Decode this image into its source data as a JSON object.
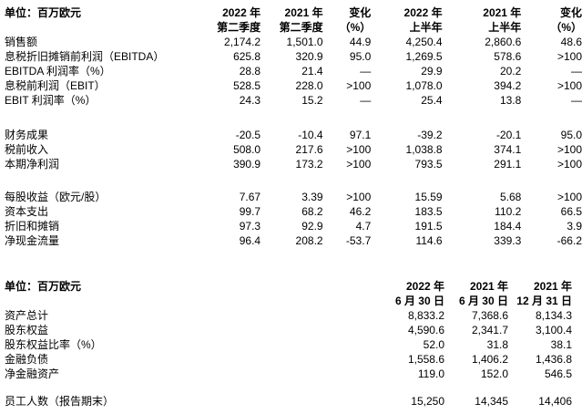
{
  "quarterly_table": {
    "unit_label": "单位：百万欧元",
    "columns": [
      {
        "line1": "2022 年",
        "line2": "第二季度"
      },
      {
        "line1": "2021 年",
        "line2": "第二季度"
      },
      {
        "line1": "变化",
        "line2": "（%）"
      },
      {
        "line1": "2022 年",
        "line2": "上半年"
      },
      {
        "line1": "2021 年",
        "line2": "上半年"
      },
      {
        "line1": "变化",
        "line2": "（%）"
      }
    ],
    "rows": [
      {
        "label": "销售额",
        "values": [
          "2,174.2",
          "1,501.0",
          "44.9",
          "4,250.4",
          "2,860.6",
          "48.6"
        ]
      },
      {
        "label": "息税折旧摊销前利润（EBITDA）",
        "values": [
          "625.8",
          "320.9",
          "95.0",
          "1,269.5",
          "578.6",
          ">100"
        ]
      },
      {
        "label": "EBITDA 利润率（%）",
        "values": [
          "28.8",
          "21.4",
          "—",
          "29.9",
          "20.2",
          "—"
        ]
      },
      {
        "label": "息税前利润（EBIT）",
        "values": [
          "528.5",
          "228.0",
          ">100",
          "1,078.0",
          "394.2",
          ">100"
        ]
      },
      {
        "label": "EBIT 利润率（%）",
        "values": [
          "24.3",
          "15.2",
          "—",
          "25.4",
          "13.8",
          "—"
        ]
      },
      {
        "label": "财务成果",
        "values": [
          "-20.5",
          "-10.4",
          "97.1",
          "-39.2",
          "-20.1",
          "95.0"
        ]
      },
      {
        "label": "税前收入",
        "values": [
          "508.0",
          "217.6",
          ">100",
          "1,038.8",
          "374.1",
          ">100"
        ]
      },
      {
        "label": "本期净利润",
        "values": [
          "390.9",
          "173.2",
          ">100",
          "793.5",
          "291.1",
          ">100"
        ]
      },
      {
        "label": "每股收益（欧元/股）",
        "values": [
          "7.67",
          "3.39",
          ">100",
          "15.59",
          "5.68",
          ">100"
        ]
      },
      {
        "label": "资本支出",
        "values": [
          "99.7",
          "68.2",
          "46.2",
          "183.5",
          "110.2",
          "66.5"
        ]
      },
      {
        "label": "折旧和摊销",
        "values": [
          "97.3",
          "92.9",
          "4.7",
          "191.5",
          "184.4",
          "3.9"
        ]
      },
      {
        "label": "净现金流量",
        "values": [
          "96.4",
          "208.2",
          "-53.7",
          "114.6",
          "339.3",
          "-66.2"
        ]
      }
    ]
  },
  "balance_table": {
    "unit_label": "单位：百万欧元",
    "columns": [
      {
        "line1": "2022 年",
        "line2": "6 月 30 日"
      },
      {
        "line1": "2021 年",
        "line2": "6 月 30 日"
      },
      {
        "line1": "2021 年",
        "line2": "12 月 31 日"
      }
    ],
    "rows": [
      {
        "label": "资产总计",
        "values": [
          "8,833.2",
          "7,368.6",
          "8,134.3"
        ]
      },
      {
        "label": "股东权益",
        "values": [
          "4,590.6",
          "2,341.7",
          "3,100.4"
        ]
      },
      {
        "label": "股东权益比率（%）",
        "values": [
          "52.0",
          "31.8",
          "38.1"
        ]
      },
      {
        "label": "金融负债",
        "values": [
          "1,558.6",
          "1,406.2",
          "1,436.8"
        ]
      },
      {
        "label": "净金融资产",
        "values": [
          "119.0",
          "152.0",
          "546.5"
        ]
      },
      {
        "label": "员工人数（报告期末）",
        "values": [
          "15,250",
          "14,345",
          "14,406"
        ]
      }
    ]
  }
}
